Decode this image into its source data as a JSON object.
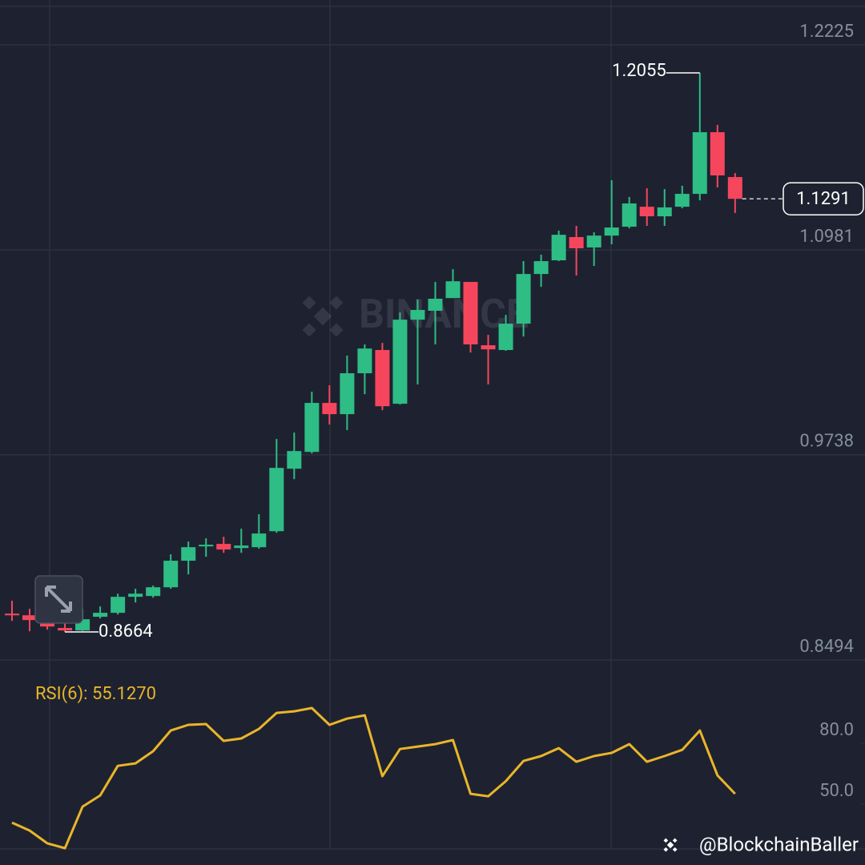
{
  "chart_data": [
    {
      "type": "candlestick",
      "open": [
        0.8775,
        0.8765,
        0.8717,
        0.8688,
        0.8673,
        0.8756,
        0.878,
        0.8877,
        0.8882,
        0.8935,
        0.9096,
        0.9183,
        0.9198,
        0.9173,
        0.9178,
        0.9275,
        0.9654,
        0.9756,
        1.0053,
        0.9985,
        1.0233,
        1.0374,
        1.0048,
        1.0558,
        1.0612,
        1.0689,
        1.0787,
        1.0403,
        1.0374,
        1.0534,
        1.0835,
        1.0918,
        1.1059,
        1.0996,
        1.1068,
        1.1122,
        1.1243,
        1.1185,
        1.1243,
        1.1321,
        1.1695,
        1.1423
      ],
      "high": [
        0.8853,
        0.8804,
        0.8756,
        0.8717,
        0.8804,
        0.8819,
        0.8896,
        0.8926,
        0.8945,
        0.9135,
        0.9212,
        0.9232,
        0.9241,
        0.929,
        0.9378,
        0.9834,
        0.9873,
        1.0121,
        1.016,
        1.034,
        1.0408,
        1.0417,
        1.0602,
        1.068,
        1.0787,
        1.0864,
        1.0787,
        1.0466,
        1.0587,
        1.0913,
        1.0952,
        1.1098,
        1.1127,
        1.1088,
        1.1404,
        1.1302,
        1.1355,
        1.135,
        1.137,
        1.2055,
        1.1739,
        1.1447
      ],
      "low": [
        0.8731,
        0.8668,
        0.8678,
        0.8664,
        0.867,
        0.8746,
        0.877,
        0.8843,
        0.8872,
        0.8926,
        0.9013,
        0.912,
        0.9144,
        0.9144,
        0.9169,
        0.9266,
        0.9591,
        0.9747,
        0.9922,
        0.9888,
        1.0106,
        1.0009,
        1.0043,
        1.0165,
        1.0408,
        1.0689,
        1.0359,
        1.0165,
        1.0369,
        1.0456,
        1.0757,
        1.0913,
        1.0826,
        1.0884,
        1.1015,
        1.1112,
        1.1127,
        1.1127,
        1.1234,
        1.1282,
        1.136,
        1.1205
      ],
      "close": [
        0.8765,
        0.8736,
        0.8697,
        0.8673,
        0.8741,
        0.878,
        0.8877,
        0.8896,
        0.8935,
        0.9096,
        0.9178,
        0.9193,
        0.9164,
        0.9188,
        0.9261,
        0.9659,
        0.9761,
        1.0053,
        0.9985,
        1.0233,
        1.0383,
        1.0033,
        1.0558,
        1.0617,
        1.0685,
        1.0791,
        1.0408,
        1.0378,
        1.0534,
        1.0835,
        1.0913,
        1.1073,
        1.0991,
        1.1068,
        1.1117,
        1.1263,
        1.1185,
        1.1239,
        1.1321,
        1.1695,
        1.1433,
        1.1291
      ],
      "up_color": "#2ebd85",
      "down_color": "#f6465d",
      "ylim": [
        0.8494,
        1.2458
      ],
      "yticks": [
        1.2225,
        1.0981,
        0.9738,
        0.8494
      ],
      "grid": true
    },
    {
      "type": "line",
      "title": "RSI(6): 55.1270",
      "color": "#e9b52a",
      "values": [
        40.9,
        37.0,
        30.7,
        28.3,
        48.8,
        54.3,
        68.9,
        70.1,
        76.1,
        86.3,
        89.1,
        89.5,
        81.2,
        82.4,
        87.1,
        95.0,
        95.8,
        97.4,
        89.1,
        92.2,
        93.8,
        63.8,
        77.2,
        78.4,
        79.6,
        81.6,
        55.1,
        53.9,
        61.4,
        71.3,
        73.7,
        77.6,
        70.9,
        73.7,
        75.3,
        79.6,
        70.9,
        73.7,
        76.8,
        86.3,
        64.2,
        55.127
      ],
      "ylim": [
        27.9,
        120.7
      ],
      "yticks": [
        {
          "value": 80,
          "label": "80.0"
        },
        {
          "value": 50,
          "label": "50.0"
        }
      ]
    }
  ],
  "watermark": "BINANCE",
  "credit": "@BlockchainBaller"
}
